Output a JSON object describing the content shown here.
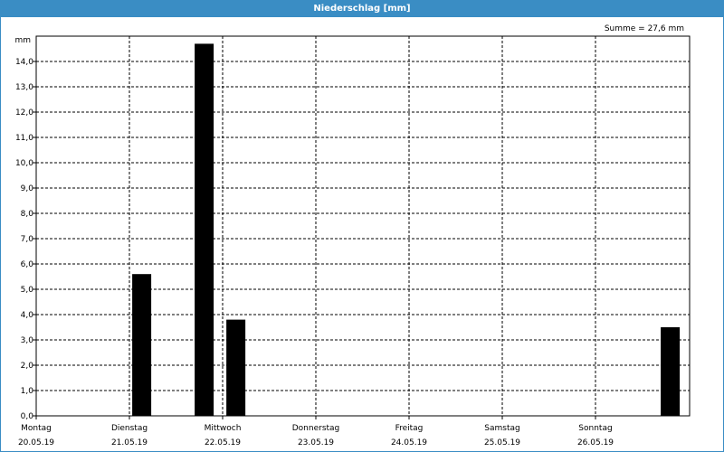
{
  "title": "Niederschlag [mm]",
  "summary": "Summe = 27,6 mm",
  "colors": {
    "titlebar": "#3a8dc4",
    "bar": "#000000",
    "grid": "#000000"
  },
  "chart_data": {
    "type": "bar",
    "title": "Niederschlag [mm]",
    "ylabel": "mm",
    "ylim": [
      0,
      15
    ],
    "y_ticks": [
      "0,0",
      "1,0",
      "2,0",
      "3,0",
      "4,0",
      "5,0",
      "6,0",
      "7,0",
      "8,0",
      "9,0",
      "10,0",
      "11,0",
      "12,0",
      "13,0",
      "14,0"
    ],
    "y_tick_values": [
      0,
      1,
      2,
      3,
      4,
      5,
      6,
      7,
      8,
      9,
      10,
      11,
      12,
      13,
      14
    ],
    "x_range_days": [
      0,
      7
    ],
    "days": [
      {
        "name": "Montag",
        "date": "20.05.19"
      },
      {
        "name": "Dienstag",
        "date": "21.05.19"
      },
      {
        "name": "Mittwoch",
        "date": "22.05.19"
      },
      {
        "name": "Donnerstag",
        "date": "23.05.19"
      },
      {
        "name": "Freitag",
        "date": "24.05.19"
      },
      {
        "name": "Samstag",
        "date": "25.05.19"
      },
      {
        "name": "Sonntag",
        "date": "26.05.19"
      }
    ],
    "grid": true,
    "bars": [
      {
        "day_offset": 1.03,
        "value": 5.6
      },
      {
        "day_offset": 1.7,
        "value": 14.7
      },
      {
        "day_offset": 2.04,
        "value": 3.8
      },
      {
        "day_offset": 6.7,
        "value": 3.5
      }
    ]
  }
}
